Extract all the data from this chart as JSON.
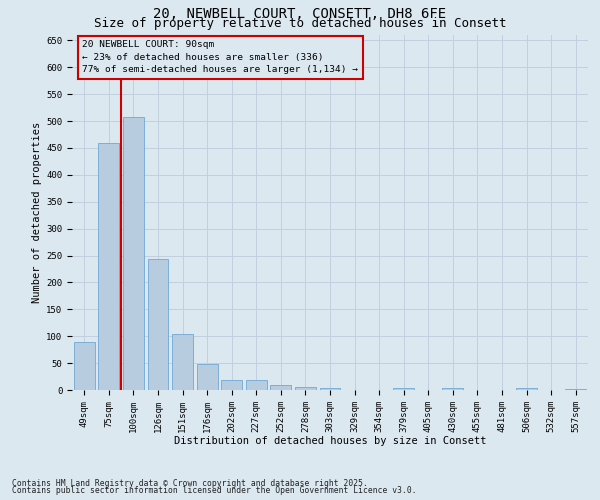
{
  "title_line1": "20, NEWBELL COURT, CONSETT, DH8 6FE",
  "title_line2": "Size of property relative to detached houses in Consett",
  "xlabel": "Distribution of detached houses by size in Consett",
  "ylabel": "Number of detached properties",
  "bar_values": [
    90,
    460,
    507,
    243,
    105,
    48,
    19,
    19,
    10,
    6,
    3,
    0,
    0,
    3,
    0,
    3,
    0,
    0,
    3,
    0,
    2
  ],
  "categories": [
    "49sqm",
    "75sqm",
    "100sqm",
    "126sqm",
    "151sqm",
    "176sqm",
    "202sqm",
    "227sqm",
    "252sqm",
    "278sqm",
    "303sqm",
    "329sqm",
    "354sqm",
    "379sqm",
    "405sqm",
    "430sqm",
    "455sqm",
    "481sqm",
    "506sqm",
    "532sqm",
    "557sqm"
  ],
  "bar_color": "#b8ccdf",
  "bar_edge_color": "#6fa8d6",
  "vertical_line_color": "#cc0000",
  "annotation_box_text": "20 NEWBELL COURT: 90sqm\n← 23% of detached houses are smaller (336)\n77% of semi-detached houses are larger (1,134) →",
  "annotation_box_color": "#cc0000",
  "ylim": [
    0,
    660
  ],
  "yticks": [
    0,
    50,
    100,
    150,
    200,
    250,
    300,
    350,
    400,
    450,
    500,
    550,
    600,
    650
  ],
  "grid_color": "#c0d0e0",
  "background_color": "#dce8f0",
  "footnote_line1": "Contains HM Land Registry data © Crown copyright and database right 2025.",
  "footnote_line2": "Contains public sector information licensed under the Open Government Licence v3.0.",
  "fig_width": 6.0,
  "fig_height": 5.0,
  "title_fontsize": 10,
  "subtitle_fontsize": 9,
  "axis_label_fontsize": 7.5,
  "tick_fontsize": 6.5,
  "annotation_fontsize": 6.8,
  "footnote_fontsize": 5.8
}
